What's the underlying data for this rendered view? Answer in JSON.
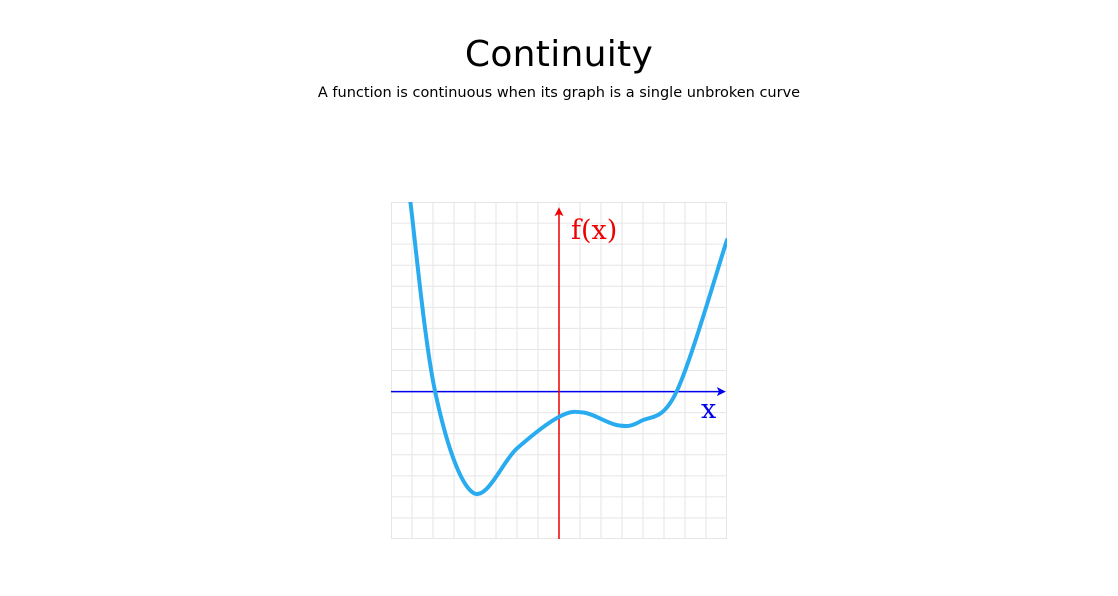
{
  "header": {
    "title": "Continuity",
    "subtitle": "A function is continuous when its graph is a single unbroken curve"
  },
  "graph": {
    "y_axis_label": "f(x)",
    "x_axis_label": "x",
    "x_range": [
      -8,
      8
    ],
    "y_range": [
      -7,
      9
    ],
    "grid": true,
    "colors": {
      "curve": "#29abf0",
      "x_axis": "#0000ee",
      "y_axis": "#ee0000",
      "grid": "#e6e6e6",
      "frame": "#e6e6e6"
    },
    "curve_points": [
      [
        -7.1,
        9.2
      ],
      [
        -5.9,
        0.0
      ],
      [
        -4.1,
        -4.8
      ],
      [
        -2.0,
        -2.7
      ],
      [
        0.0,
        -1.2
      ],
      [
        1.2,
        -1.0
      ],
      [
        2.8,
        -1.6
      ],
      [
        3.9,
        -1.4
      ],
      [
        5.6,
        0.0
      ],
      [
        8.0,
        7.2
      ]
    ]
  }
}
